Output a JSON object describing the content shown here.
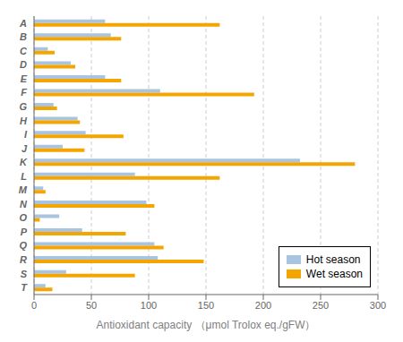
{
  "chart_data": {
    "type": "bar",
    "orientation": "horizontal",
    "xlabel": "Antioxidant capacity （μmol Trolox eq./gFW）",
    "categories": [
      "A",
      "B",
      "C",
      "D",
      "E",
      "F",
      "G",
      "H",
      "I",
      "J",
      "K",
      "L",
      "M",
      "N",
      "O",
      "P",
      "Q",
      "R",
      "S",
      "T"
    ],
    "series": [
      {
        "name": "Hot season",
        "color": "#a8c4e0",
        "values": [
          62,
          67,
          12,
          32,
          62,
          110,
          17,
          38,
          45,
          25,
          232,
          88,
          8,
          98,
          22,
          42,
          105,
          108,
          28,
          10
        ]
      },
      {
        "name": "Wet season",
        "color": "#f5a500",
        "values": [
          162,
          76,
          18,
          36,
          76,
          192,
          20,
          40,
          78,
          44,
          280,
          162,
          10,
          105,
          5,
          80,
          113,
          148,
          88,
          16
        ]
      }
    ],
    "xlim": [
      0,
      300
    ],
    "xticks": [
      0,
      50,
      100,
      150,
      200,
      250,
      300
    ],
    "grid": true,
    "legend": "lower right"
  }
}
